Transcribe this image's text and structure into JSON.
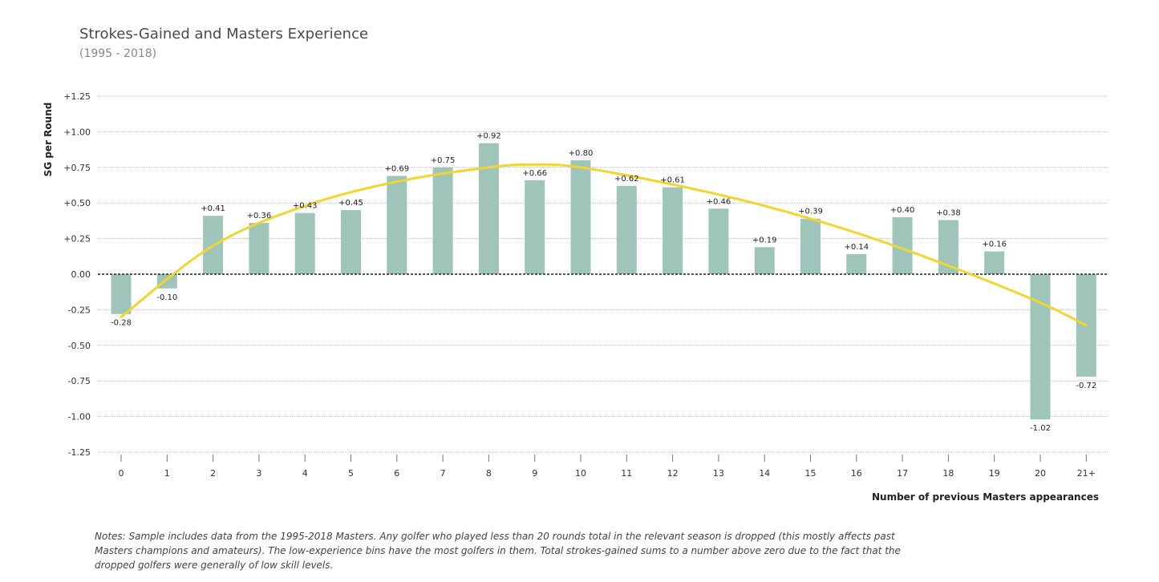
{
  "chart_data": {
    "type": "bar",
    "title": "Strokes-Gained and Masters Experience",
    "subtitle": "(1995 - 2018)",
    "ylabel": "SG per Round",
    "xlabel": "Number of previous Masters appearances",
    "ylim": [
      -1.25,
      1.25
    ],
    "yticks": [
      "+1.25",
      "+1.00",
      "+0.75",
      "+0.50",
      "+0.25",
      "0.00",
      "-0.25",
      "-0.50",
      "-0.75",
      "-1.00",
      "-1.25"
    ],
    "ytick_values": [
      1.25,
      1.0,
      0.75,
      0.5,
      0.25,
      0.0,
      -0.25,
      -0.5,
      -0.75,
      -1.0,
      -1.25
    ],
    "grid": true,
    "categories": [
      "0",
      "1",
      "2",
      "3",
      "4",
      "5",
      "6",
      "7",
      "8",
      "9",
      "10",
      "11",
      "12",
      "13",
      "14",
      "15",
      "16",
      "17",
      "18",
      "19",
      "20",
      "21+"
    ],
    "values": [
      -0.28,
      -0.1,
      0.41,
      0.36,
      0.43,
      0.45,
      0.69,
      0.75,
      0.92,
      0.66,
      0.8,
      0.62,
      0.61,
      0.46,
      0.19,
      0.39,
      0.14,
      0.4,
      0.38,
      0.16,
      -1.02,
      -0.72
    ],
    "value_labels": [
      "-0.28",
      "-0.10",
      "+0.41",
      "+0.36",
      "+0.43",
      "+0.45",
      "+0.69",
      "+0.75",
      "+0.92",
      "+0.66",
      "+0.80",
      "+0.62",
      "+0.61",
      "+0.46",
      "+0.19",
      "+0.39",
      "+0.14",
      "+0.40",
      "+0.38",
      "+0.16",
      "-1.02",
      "-0.72"
    ],
    "trend": {
      "name": "fitted curve",
      "x": [
        0,
        2,
        4,
        6,
        8,
        9,
        10,
        12,
        14,
        16,
        18,
        20,
        21
      ],
      "y": [
        -0.3,
        0.2,
        0.48,
        0.65,
        0.75,
        0.77,
        0.75,
        0.63,
        0.48,
        0.29,
        0.06,
        -0.2,
        -0.36
      ]
    },
    "colors": {
      "bar": "#9fc4b9",
      "trend": "#f2d530",
      "grid": "#bbbbbb",
      "zero": "#222222"
    }
  },
  "notes": "Notes: Sample includes data from the 1995-2018 Masters. Any golfer who played less than 20 rounds total in the relevant season is dropped (this mostly affects past Masters champions and amateurs). The low-experience bins have the most golfers in them. Total strokes-gained sums to a number above zero due to the fact that the dropped golfers were generally of low skill levels."
}
